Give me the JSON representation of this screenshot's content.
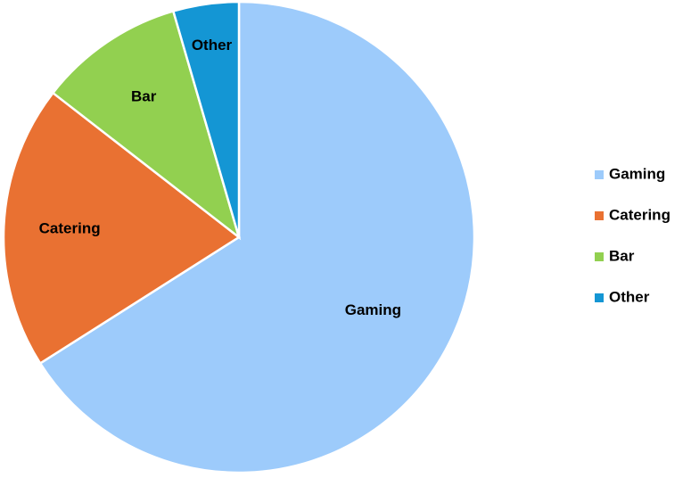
{
  "chart_data": {
    "type": "pie",
    "categories": [
      "Gaming",
      "Catering",
      "Bar",
      "Other"
    ],
    "values": [
      66,
      19.5,
      10,
      4.5
    ],
    "colors": [
      "#9dcbfb",
      "#e97132",
      "#92d050",
      "#1496d4"
    ],
    "legend": "right"
  }
}
